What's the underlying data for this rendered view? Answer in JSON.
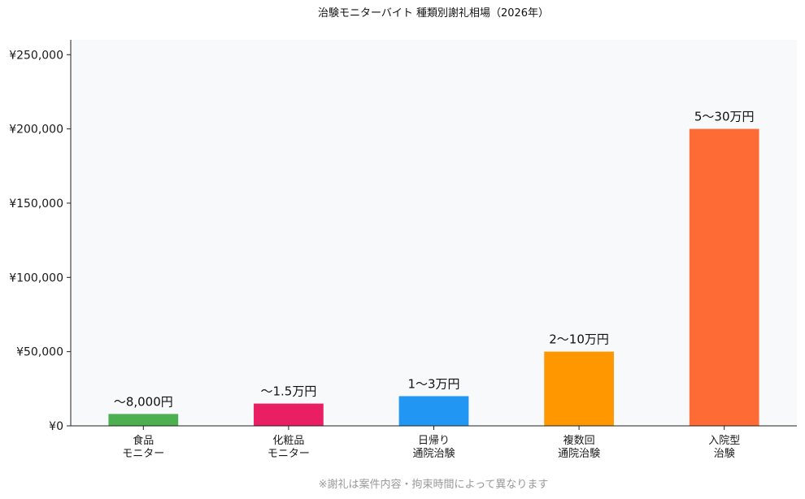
{
  "chart_data": {
    "type": "bar",
    "title": "治験モニターバイト 種類別謝礼相場（2026年）",
    "categories": [
      [
        "食品",
        "モニター"
      ],
      [
        "化粧品",
        "モニター"
      ],
      [
        "日帰り",
        "通院治験"
      ],
      [
        "複数回",
        "通院治験"
      ],
      [
        "入院型",
        "治験"
      ]
    ],
    "values": [
      8000,
      15000,
      20000,
      50000,
      200000
    ],
    "value_labels": [
      "〜8,000円",
      "〜1.5万円",
      "1〜3万円",
      "2〜10万円",
      "5〜30万円"
    ],
    "colors": [
      "#4caf50",
      "#e91e63",
      "#2196f3",
      "#ff9800",
      "#ff6b35"
    ],
    "ylim": [
      0,
      260000
    ],
    "yticks": [
      0,
      50000,
      100000,
      150000,
      200000,
      250000
    ],
    "ytick_labels": [
      "¥0",
      "¥50,000",
      "¥100,000",
      "¥150,000",
      "¥200,000",
      "¥250,000"
    ],
    "xlabel": "",
    "ylabel": "",
    "grid": false,
    "legend": "none",
    "plot_background": "#f7f9fb",
    "footnote": "※謝礼は案件内容・拘束時間によって異なります"
  }
}
